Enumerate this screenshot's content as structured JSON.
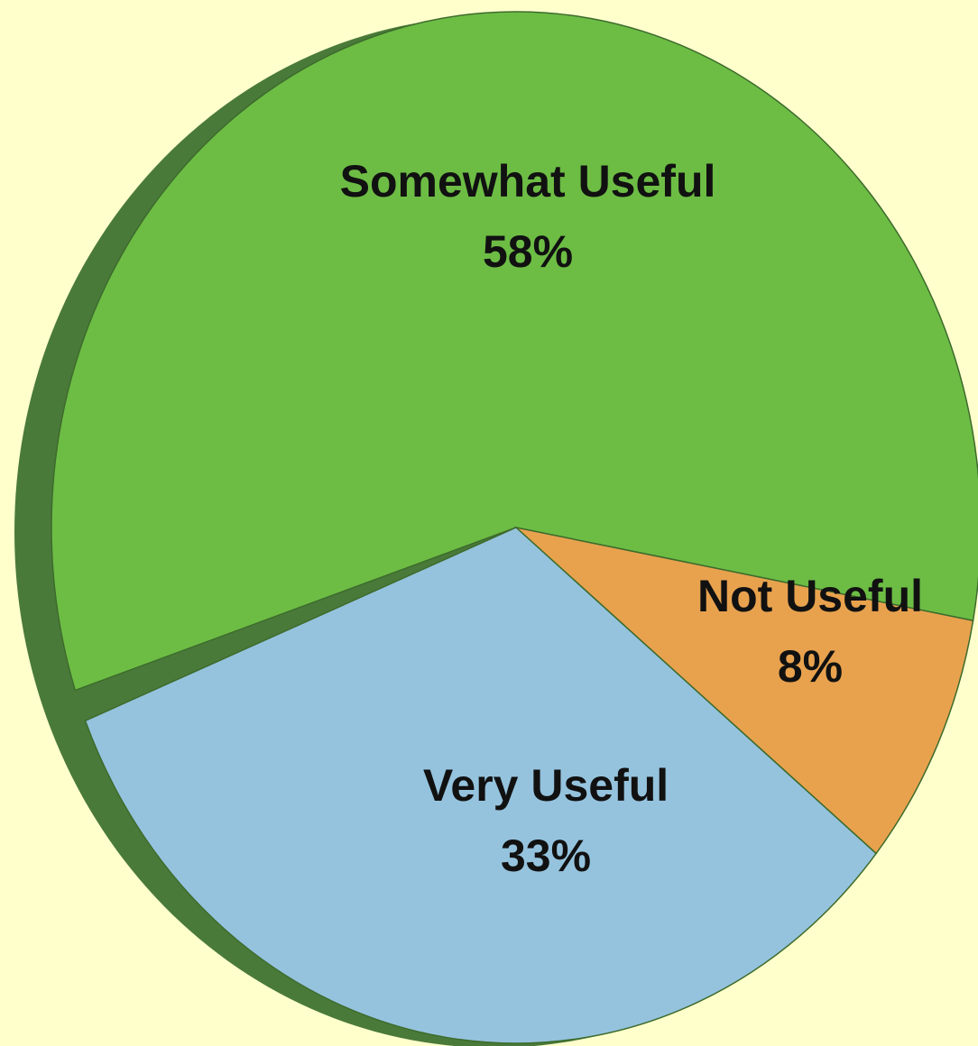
{
  "chart_data": {
    "type": "pie",
    "categories": [
      "Somewhat Useful",
      "Not Useful",
      "Very Useful"
    ],
    "values": [
      58,
      8,
      33
    ],
    "value_labels": [
      "58%",
      "8%",
      "33%"
    ],
    "colors": [
      "#6dbd45",
      "#e8a24e",
      "#95c3de"
    ]
  }
}
